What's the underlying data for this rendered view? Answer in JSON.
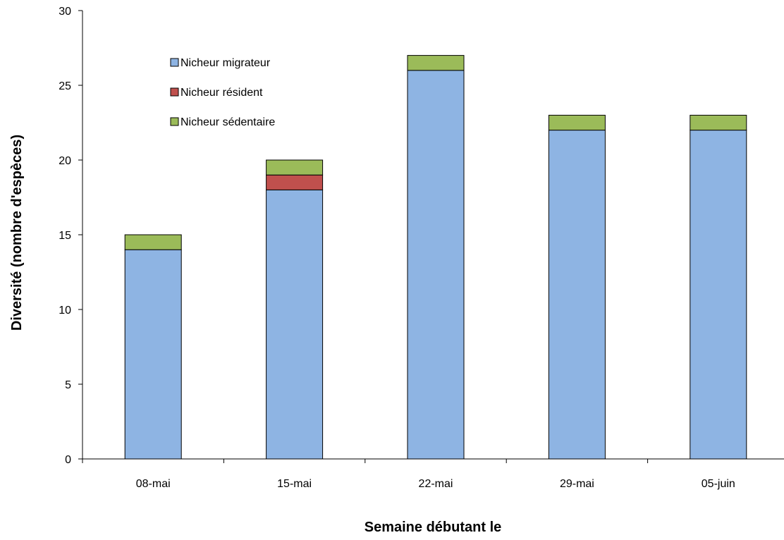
{
  "chart_data": {
    "type": "bar",
    "stacked": true,
    "categories": [
      "08-mai",
      "15-mai",
      "22-mai",
      "29-mai",
      "05-juin"
    ],
    "series": [
      {
        "name": "Nicheur migrateur",
        "color": "#8eb4e3",
        "values": [
          14,
          18,
          26,
          22,
          22
        ]
      },
      {
        "name": "Nicheur résident",
        "color": "#c0504d",
        "values": [
          0,
          1,
          0,
          0,
          0
        ]
      },
      {
        "name": "Nicheur sédentaire",
        "color": "#9bbb59",
        "values": [
          1,
          1,
          1,
          1,
          1
        ]
      }
    ],
    "title": "",
    "xlabel": "Semaine débutant le",
    "ylabel": "Diversité (nombre d'espèces)",
    "ylim": [
      0,
      30
    ],
    "yticks": [
      0,
      5,
      10,
      15,
      20,
      25,
      30
    ],
    "grid": false,
    "legend_position": "top-left"
  }
}
